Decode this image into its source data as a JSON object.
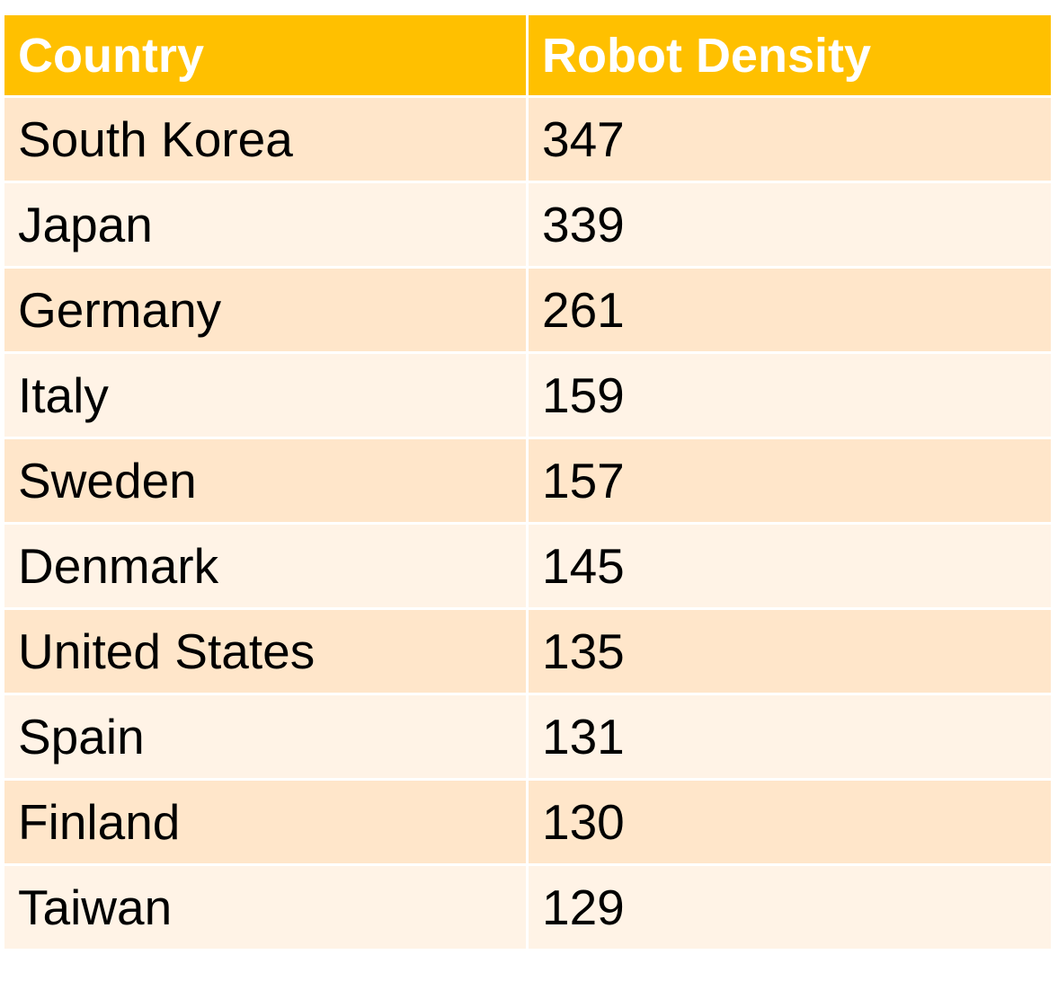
{
  "colors": {
    "header_bg": "#FFC000",
    "header_text": "#FFFFFF",
    "row_odd_bg": "#FFE6CA",
    "row_even_bg": "#FFF3E6",
    "cell_text": "#000000"
  },
  "chart_data": {
    "type": "table",
    "columns": [
      "Country",
      "Robot Density"
    ],
    "rows": [
      [
        "South Korea",
        "347"
      ],
      [
        "Japan",
        "339"
      ],
      [
        "Germany",
        "261"
      ],
      [
        "Italy",
        "159"
      ],
      [
        "Sweden",
        "157"
      ],
      [
        "Denmark",
        "145"
      ],
      [
        "United States",
        "135"
      ],
      [
        "Spain",
        "131"
      ],
      [
        "Finland",
        "130"
      ],
      [
        "Taiwan",
        "129"
      ]
    ]
  }
}
